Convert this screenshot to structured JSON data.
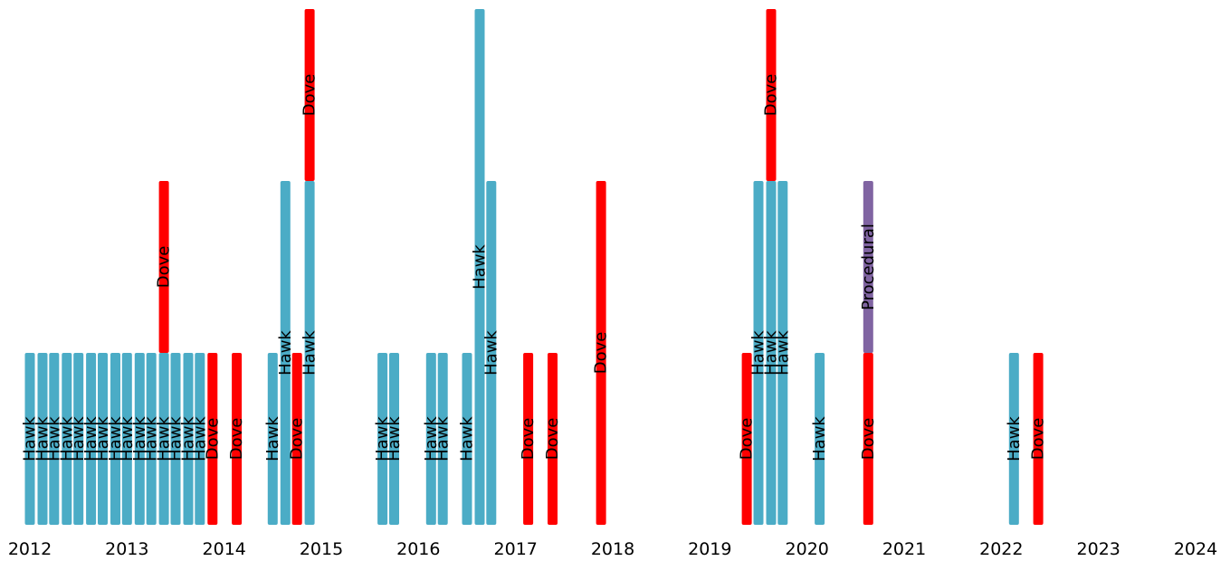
{
  "chart_data": {
    "type": "bar",
    "title": "",
    "xlabel": "",
    "ylabel": "",
    "xlim": [
      2012,
      2024
    ],
    "ylim": [
      0,
      3
    ],
    "grid": false,
    "colors": {
      "Hawk": "#4bacc6",
      "Dove": "#ff0000",
      "Procedural": "#8064a2"
    },
    "x_ticks": [
      "2012",
      "2013",
      "2014",
      "2015",
      "2016",
      "2017",
      "2018",
      "2019",
      "2020",
      "2021",
      "2022",
      "2023",
      "2024"
    ],
    "stacks": [
      {
        "x": 2012.0,
        "segments": [
          {
            "label": "Hawk",
            "value": 1
          }
        ]
      },
      {
        "x": 2012.13,
        "segments": [
          {
            "label": "Hawk",
            "value": 1
          }
        ]
      },
      {
        "x": 2012.25,
        "segments": [
          {
            "label": "Hawk",
            "value": 1
          }
        ]
      },
      {
        "x": 2012.38,
        "segments": [
          {
            "label": "Hawk",
            "value": 1
          }
        ]
      },
      {
        "x": 2012.5,
        "segments": [
          {
            "label": "Hawk",
            "value": 1
          }
        ]
      },
      {
        "x": 2012.63,
        "segments": [
          {
            "label": "Hawk",
            "value": 1
          }
        ]
      },
      {
        "x": 2012.75,
        "segments": [
          {
            "label": "Hawk",
            "value": 1
          }
        ]
      },
      {
        "x": 2012.88,
        "segments": [
          {
            "label": "Hawk",
            "value": 1
          }
        ]
      },
      {
        "x": 2013.0,
        "segments": [
          {
            "label": "Hawk",
            "value": 1
          }
        ]
      },
      {
        "x": 2013.13,
        "segments": [
          {
            "label": "Hawk",
            "value": 1
          }
        ]
      },
      {
        "x": 2013.25,
        "segments": [
          {
            "label": "Hawk",
            "value": 1
          }
        ]
      },
      {
        "x": 2013.38,
        "segments": [
          {
            "label": "Hawk",
            "value": 1
          },
          {
            "label": "Dove",
            "value": 1
          }
        ]
      },
      {
        "x": 2013.5,
        "segments": [
          {
            "label": "Hawk",
            "value": 1
          }
        ]
      },
      {
        "x": 2013.63,
        "segments": [
          {
            "label": "Hawk",
            "value": 1
          }
        ]
      },
      {
        "x": 2013.75,
        "segments": [
          {
            "label": "Hawk",
            "value": 1
          }
        ]
      },
      {
        "x": 2013.88,
        "segments": [
          {
            "label": "Dove",
            "value": 1
          }
        ]
      },
      {
        "x": 2014.13,
        "segments": [
          {
            "label": "Dove",
            "value": 1
          }
        ]
      },
      {
        "x": 2014.5,
        "segments": [
          {
            "label": "Hawk",
            "value": 1
          }
        ]
      },
      {
        "x": 2014.63,
        "segments": [
          {
            "label": "Hawk",
            "value": 2
          }
        ]
      },
      {
        "x": 2014.75,
        "segments": [
          {
            "label": "Dove",
            "value": 1
          }
        ]
      },
      {
        "x": 2014.88,
        "segments": [
          {
            "label": "Hawk",
            "value": 2
          },
          {
            "label": "Dove",
            "value": 1
          }
        ]
      },
      {
        "x": 2015.63,
        "segments": [
          {
            "label": "Hawk",
            "value": 1
          }
        ]
      },
      {
        "x": 2015.75,
        "segments": [
          {
            "label": "Hawk",
            "value": 1
          }
        ]
      },
      {
        "x": 2016.13,
        "segments": [
          {
            "label": "Hawk",
            "value": 1
          }
        ]
      },
      {
        "x": 2016.25,
        "segments": [
          {
            "label": "Hawk",
            "value": 1
          }
        ]
      },
      {
        "x": 2016.5,
        "segments": [
          {
            "label": "Hawk",
            "value": 1
          }
        ]
      },
      {
        "x": 2016.63,
        "segments": [
          {
            "label": "Hawk",
            "value": 3
          }
        ]
      },
      {
        "x": 2016.75,
        "segments": [
          {
            "label": "Hawk",
            "value": 2
          }
        ]
      },
      {
        "x": 2017.13,
        "segments": [
          {
            "label": "Dove",
            "value": 1
          }
        ]
      },
      {
        "x": 2017.38,
        "segments": [
          {
            "label": "Dove",
            "value": 1
          }
        ]
      },
      {
        "x": 2017.88,
        "segments": [
          {
            "label": "Dove",
            "value": 2
          }
        ]
      },
      {
        "x": 2019.38,
        "segments": [
          {
            "label": "Dove",
            "value": 1
          }
        ]
      },
      {
        "x": 2019.5,
        "segments": [
          {
            "label": "Hawk",
            "value": 2
          }
        ]
      },
      {
        "x": 2019.63,
        "segments": [
          {
            "label": "Hawk",
            "value": 2
          },
          {
            "label": "Dove",
            "value": 1
          }
        ]
      },
      {
        "x": 2019.75,
        "segments": [
          {
            "label": "Hawk",
            "value": 2
          }
        ]
      },
      {
        "x": 2020.13,
        "segments": [
          {
            "label": "Hawk",
            "value": 1
          }
        ]
      },
      {
        "x": 2020.63,
        "segments": [
          {
            "label": "Dove",
            "value": 1
          },
          {
            "label": "Procedural",
            "value": 1
          }
        ]
      },
      {
        "x": 2022.13,
        "segments": [
          {
            "label": "Hawk",
            "value": 1
          }
        ]
      },
      {
        "x": 2022.38,
        "segments": [
          {
            "label": "Dove",
            "value": 1
          }
        ]
      }
    ]
  }
}
